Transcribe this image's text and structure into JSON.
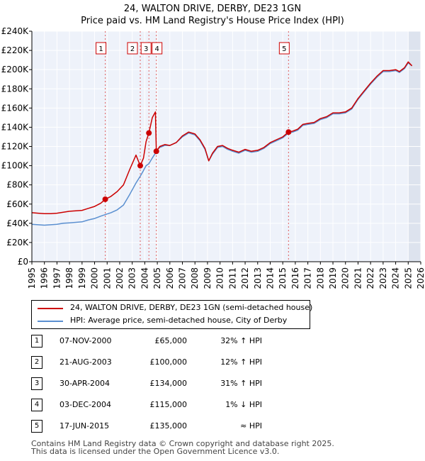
{
  "chart_data": {
    "type": "line",
    "title": "24, WALTON DRIVE, DERBY, DE23 1GN",
    "subtitle": "Price paid vs. HM Land Registry's House Price Index (HPI)",
    "xlabel": "",
    "ylabel": "",
    "xlim": [
      1995,
      2026
    ],
    "ylim": [
      0,
      240000
    ],
    "x_ticks": [
      "1995",
      "1996",
      "1997",
      "1998",
      "1999",
      "2000",
      "2001",
      "2002",
      "2003",
      "2004",
      "2005",
      "2006",
      "2007",
      "2008",
      "2009",
      "2010",
      "2011",
      "2012",
      "2013",
      "2014",
      "2015",
      "2016",
      "2017",
      "2018",
      "2019",
      "2020",
      "2021",
      "2022",
      "2023",
      "2024",
      "2025",
      "2026"
    ],
    "y_ticks": [
      {
        "value": 0,
        "label": "£0"
      },
      {
        "value": 20000,
        "label": "£20K"
      },
      {
        "value": 40000,
        "label": "£40K"
      },
      {
        "value": 60000,
        "label": "£60K"
      },
      {
        "value": 80000,
        "label": "£80K"
      },
      {
        "value": 100000,
        "label": "£100K"
      },
      {
        "value": 120000,
        "label": "£120K"
      },
      {
        "value": 140000,
        "label": "£140K"
      },
      {
        "value": 160000,
        "label": "£160K"
      },
      {
        "value": 180000,
        "label": "£180K"
      },
      {
        "value": 200000,
        "label": "£200K"
      },
      {
        "value": 220000,
        "label": "£220K"
      },
      {
        "value": 240000,
        "label": "£240K"
      }
    ],
    "grid": true,
    "series": [
      {
        "name": "24, WALTON DRIVE, DERBY, DE23 1GN (semi-detached house)",
        "color": "#cc0000",
        "points": [
          [
            1995.0,
            51000
          ],
          [
            1995.5,
            50500
          ],
          [
            1996.0,
            50000
          ],
          [
            1996.5,
            50000
          ],
          [
            1997.0,
            50500
          ],
          [
            1997.5,
            51500
          ],
          [
            1998.0,
            52500
          ],
          [
            1998.5,
            53000
          ],
          [
            1999.0,
            53500
          ],
          [
            1999.5,
            55500
          ],
          [
            2000.0,
            57500
          ],
          [
            2000.5,
            61000
          ],
          [
            2000.85,
            65000
          ],
          [
            2001.3,
            68000
          ],
          [
            2001.8,
            73000
          ],
          [
            2002.3,
            80000
          ],
          [
            2002.8,
            96000
          ],
          [
            2003.3,
            111000
          ],
          [
            2003.64,
            100000
          ],
          [
            2003.9,
            108000
          ],
          [
            2004.1,
            125000
          ],
          [
            2004.33,
            134000
          ],
          [
            2004.6,
            150000
          ],
          [
            2004.85,
            156000
          ],
          [
            2004.92,
            115000
          ],
          [
            2005.2,
            120000
          ],
          [
            2005.6,
            122000
          ],
          [
            2006.0,
            121000
          ],
          [
            2006.5,
            124000
          ],
          [
            2007.0,
            131000
          ],
          [
            2007.5,
            135000
          ],
          [
            2008.0,
            133000
          ],
          [
            2008.4,
            127000
          ],
          [
            2008.8,
            118000
          ],
          [
            2009.1,
            105000
          ],
          [
            2009.4,
            113000
          ],
          [
            2009.8,
            120000
          ],
          [
            2010.2,
            121000
          ],
          [
            2010.6,
            118000
          ],
          [
            2011.0,
            116000
          ],
          [
            2011.5,
            114000
          ],
          [
            2012.0,
            117000
          ],
          [
            2012.5,
            115000
          ],
          [
            2013.0,
            116000
          ],
          [
            2013.5,
            119000
          ],
          [
            2014.0,
            124000
          ],
          [
            2014.5,
            127000
          ],
          [
            2015.0,
            130000
          ],
          [
            2015.46,
            135000
          ],
          [
            2015.8,
            136000
          ],
          [
            2016.2,
            138000
          ],
          [
            2016.6,
            143000
          ],
          [
            2017.0,
            144000
          ],
          [
            2017.5,
            145000
          ],
          [
            2018.0,
            149000
          ],
          [
            2018.5,
            151000
          ],
          [
            2019.0,
            155000
          ],
          [
            2019.5,
            155000
          ],
          [
            2020.0,
            156000
          ],
          [
            2020.5,
            160000
          ],
          [
            2021.0,
            170000
          ],
          [
            2021.5,
            178000
          ],
          [
            2022.0,
            186000
          ],
          [
            2022.5,
            193000
          ],
          [
            2023.0,
            199000
          ],
          [
            2023.5,
            199000
          ],
          [
            2024.0,
            200000
          ],
          [
            2024.3,
            198000
          ],
          [
            2024.7,
            202000
          ],
          [
            2025.0,
            208000
          ],
          [
            2025.3,
            204000
          ]
        ]
      },
      {
        "name": "HPI: Average price, semi-detached house, City of Derby",
        "color": "#5a8fd0",
        "points": [
          [
            1995.0,
            39000
          ],
          [
            1995.5,
            38500
          ],
          [
            1996.0,
            38000
          ],
          [
            1996.5,
            38500
          ],
          [
            1997.0,
            39000
          ],
          [
            1997.5,
            40000
          ],
          [
            1998.0,
            40500
          ],
          [
            1998.5,
            41000
          ],
          [
            1999.0,
            41500
          ],
          [
            1999.5,
            43500
          ],
          [
            2000.0,
            45000
          ],
          [
            2000.5,
            47500
          ],
          [
            2000.85,
            49000
          ],
          [
            2001.3,
            51000
          ],
          [
            2001.8,
            54000
          ],
          [
            2002.3,
            59000
          ],
          [
            2002.8,
            70000
          ],
          [
            2003.3,
            82000
          ],
          [
            2003.64,
            89000
          ],
          [
            2003.9,
            95000
          ],
          [
            2004.1,
            100000
          ],
          [
            2004.33,
            102000
          ],
          [
            2004.6,
            108000
          ],
          [
            2004.85,
            113000
          ],
          [
            2004.92,
            116000
          ],
          [
            2005.2,
            119000
          ],
          [
            2005.6,
            121000
          ],
          [
            2006.0,
            121000
          ],
          [
            2006.5,
            124000
          ],
          [
            2007.0,
            130000
          ],
          [
            2007.5,
            134000
          ],
          [
            2008.0,
            132000
          ],
          [
            2008.4,
            126000
          ],
          [
            2008.8,
            117000
          ],
          [
            2009.1,
            105000
          ],
          [
            2009.4,
            112000
          ],
          [
            2009.8,
            119000
          ],
          [
            2010.2,
            120000
          ],
          [
            2010.6,
            117000
          ],
          [
            2011.0,
            115000
          ],
          [
            2011.5,
            113000
          ],
          [
            2012.0,
            116000
          ],
          [
            2012.5,
            114000
          ],
          [
            2013.0,
            115000
          ],
          [
            2013.5,
            118000
          ],
          [
            2014.0,
            123000
          ],
          [
            2014.5,
            126000
          ],
          [
            2015.0,
            129000
          ],
          [
            2015.46,
            134000
          ],
          [
            2015.8,
            135000
          ],
          [
            2016.2,
            137000
          ],
          [
            2016.6,
            142000
          ],
          [
            2017.0,
            143000
          ],
          [
            2017.5,
            144000
          ],
          [
            2018.0,
            148000
          ],
          [
            2018.5,
            150000
          ],
          [
            2019.0,
            154000
          ],
          [
            2019.5,
            154000
          ],
          [
            2020.0,
            155000
          ],
          [
            2020.5,
            159000
          ],
          [
            2021.0,
            169000
          ],
          [
            2021.5,
            177000
          ],
          [
            2022.0,
            185000
          ],
          [
            2022.5,
            192000
          ],
          [
            2023.0,
            198000
          ],
          [
            2023.5,
            198000
          ],
          [
            2024.0,
            199000
          ],
          [
            2024.3,
            197000
          ],
          [
            2024.7,
            201000
          ],
          [
            2025.0,
            207000
          ],
          [
            2025.3,
            204000
          ]
        ]
      }
    ],
    "sale_markers": [
      {
        "label": "1",
        "x": 2000.85,
        "price": 65000
      },
      {
        "label": "2",
        "x": 2003.64,
        "price": 100000
      },
      {
        "label": "3",
        "x": 2004.33,
        "price": 134000
      },
      {
        "label": "4",
        "x": 2004.92,
        "price": 115000
      },
      {
        "label": "5",
        "x": 2015.46,
        "price": 135000
      }
    ],
    "hpi_shade_start": 2025.0
  },
  "legend": {
    "price_label": "24, WALTON DRIVE, DERBY, DE23 1GN (semi-detached house)",
    "hpi_label": "HPI: Average price, semi-detached house, City of Derby",
    "price_color": "#cc0000",
    "hpi_color": "#5a8fd0"
  },
  "sales": [
    {
      "num": "1",
      "date": "07-NOV-2000",
      "price": "£65,000",
      "hpi": "32% ↑ HPI"
    },
    {
      "num": "2",
      "date": "21-AUG-2003",
      "price": "£100,000",
      "hpi": "12% ↑ HPI"
    },
    {
      "num": "3",
      "date": "30-APR-2004",
      "price": "£134,000",
      "hpi": "31% ↑ HPI"
    },
    {
      "num": "4",
      "date": "03-DEC-2004",
      "price": "£115,000",
      "hpi": "1% ↓ HPI"
    },
    {
      "num": "5",
      "date": "17-JUN-2015",
      "price": "£135,000",
      "hpi": "≈ HPI"
    }
  ],
  "footer": {
    "line1": "Contains HM Land Registry data © Crown copyright and database right 2025.",
    "line2": "This data is licensed under the Open Government Licence v3.0."
  }
}
